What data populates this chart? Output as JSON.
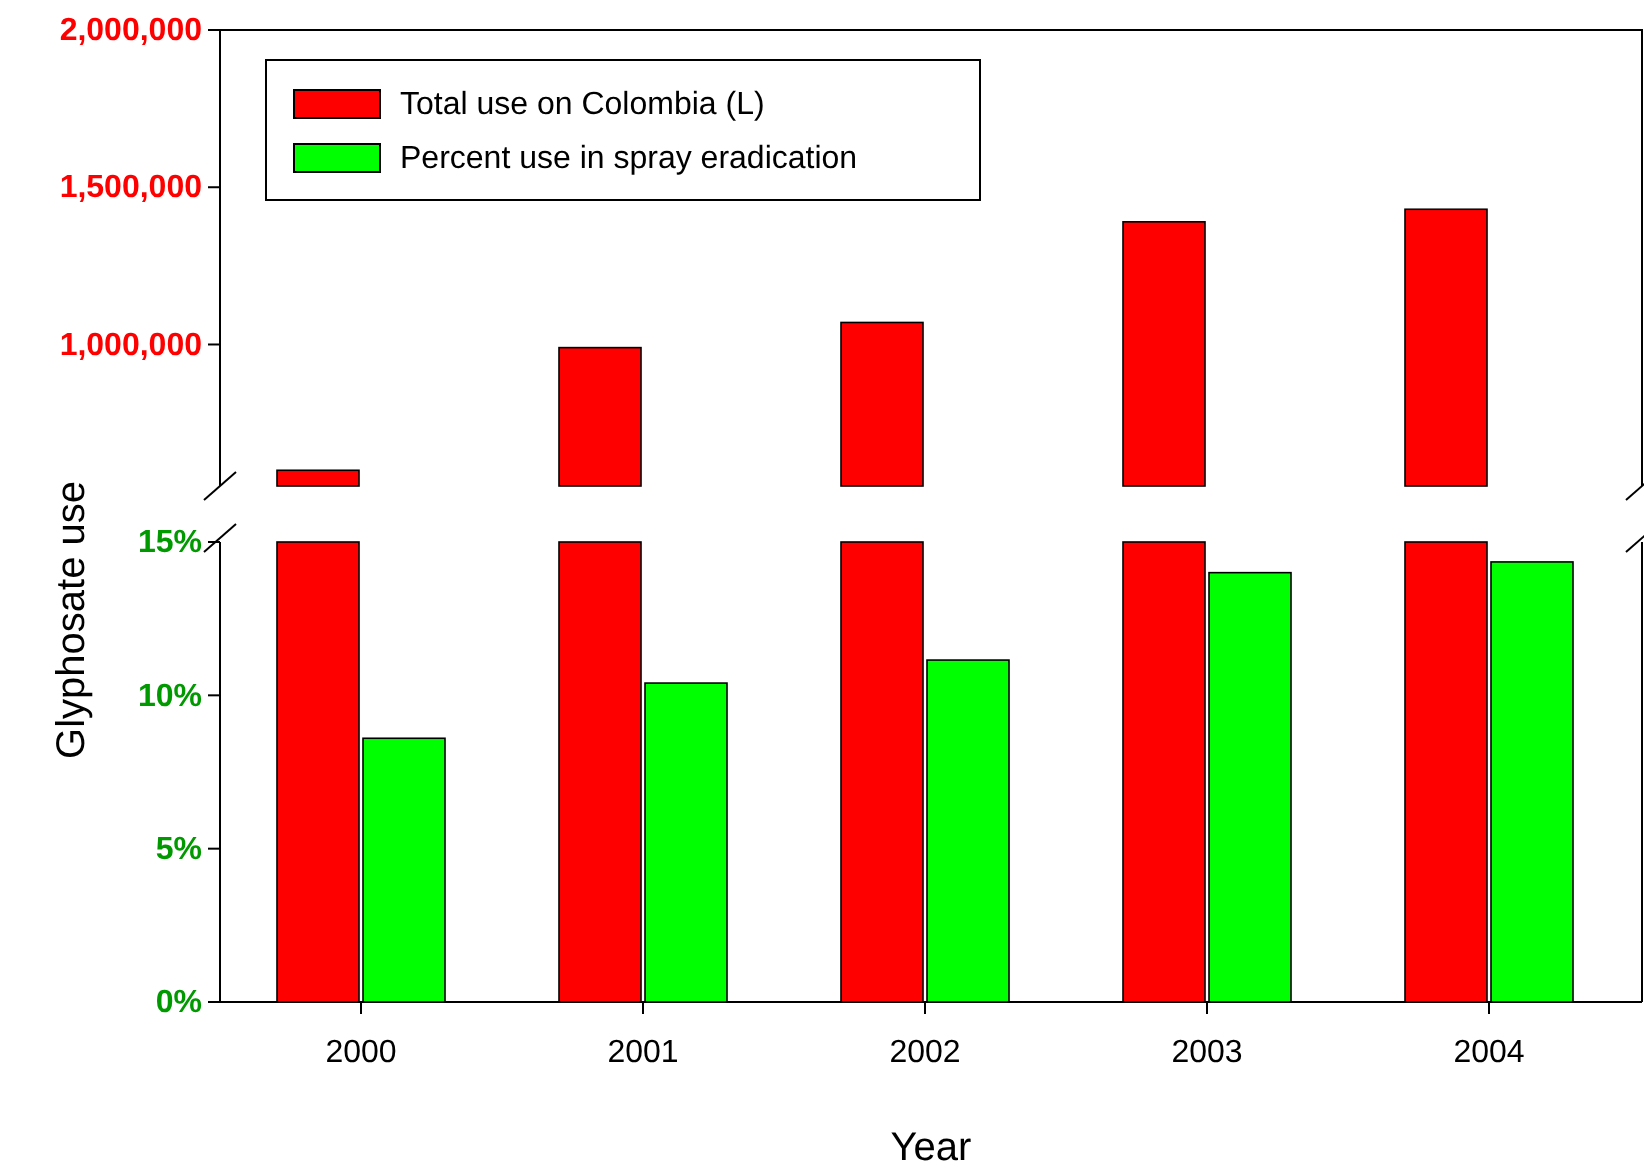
{
  "chart_data": [
    {
      "type": "bar",
      "categories": [
        null,
        null,
        null,
        null,
        null
      ],
      "ylim": [
        550000,
        2000000
      ],
      "yticks": [
        {
          "value": 1000000,
          "label": "1,000,000"
        },
        {
          "value": 1500000,
          "label": "1,500,000"
        },
        {
          "value": 2000000,
          "label": "2,000,000"
        }
      ],
      "tick_labels": "y",
      "legend": "top left",
      "series": [
        {
          "name": "Total use on Colombia (L)",
          "color": "#ff0000",
          "values": [
            600000,
            990000,
            1070000,
            1390000,
            1430000
          ]
        }
      ]
    },
    {
      "type": "bar",
      "categories": [
        "2000",
        "2001",
        "2002",
        "2003",
        "2004"
      ],
      "xlabel": "Year",
      "ylabel": "Glyphosate use",
      "ylim": [
        0,
        15
      ],
      "yticks": [
        {
          "value": 0,
          "label": "0%"
        },
        {
          "value": 5,
          "label": "5%"
        },
        {
          "value": 10,
          "label": "10%"
        },
        {
          "value": 15,
          "label": "15%"
        }
      ],
      "legend": "top left",
      "series": [
        {
          "color": "#ff0000",
          "values": [
            15,
            15,
            15,
            15,
            15
          ]
        },
        {
          "name": "Percent use in spray eradication",
          "color": "#00ff00",
          "values": [
            8.6,
            10.4,
            11.15,
            14.0,
            14.35
          ]
        }
      ]
    }
  ]
}
